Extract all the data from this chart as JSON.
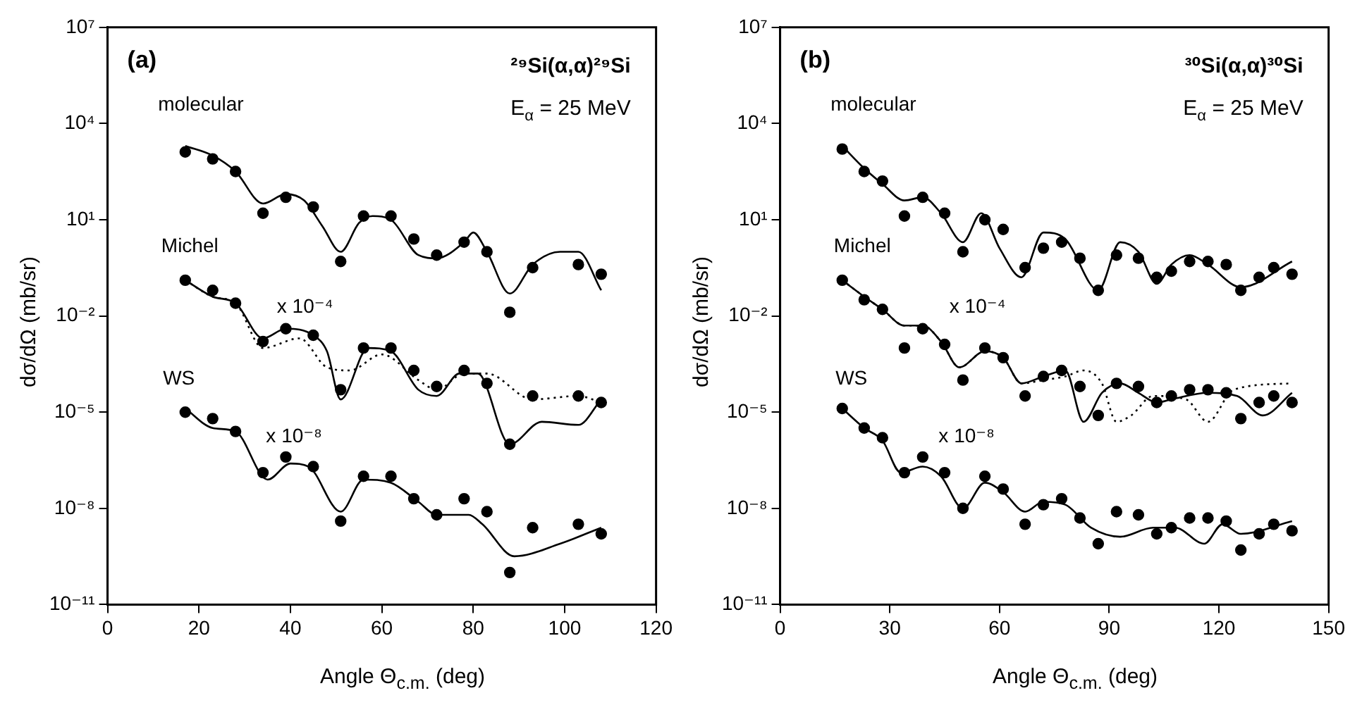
{
  "chart_data": [
    {
      "type": "scatter",
      "xlabel": "Angle Θ$_{c.m.}$ (deg)",
      "ylabel": "dσ/dΩ (mb/sr)",
      "log": "y",
      "marker": "circle",
      "xlim": [
        0,
        120
      ],
      "xticks": [
        0,
        20,
        40,
        60,
        80,
        100,
        120
      ],
      "ylim": [
        1e-11,
        10000000.0
      ],
      "yticks": [
        {
          "value": 10000000.0,
          "label": "10⁷"
        },
        {
          "value": 10000.0,
          "label": "10⁴"
        },
        {
          "value": 10,
          "label": "10¹"
        },
        {
          "value": 0.01,
          "label": "10⁻²"
        },
        {
          "value": 1e-05,
          "label": "10⁻⁵"
        },
        {
          "value": 1e-08,
          "label": "10⁻⁸"
        },
        {
          "value": 1e-11,
          "label": "10⁻¹¹"
        }
      ],
      "annotations": [
        "(a)",
        "²⁹Si(α,α)²⁹Si",
        "E$_{α}$ = 25 MeV",
        "molecular",
        "Michel",
        "x 10⁻⁴",
        "WS",
        "x 10⁻⁸"
      ],
      "series": [
        {
          "color": "#000000",
          "x": [
            17,
            23,
            28,
            34,
            39,
            45,
            51,
            56,
            62,
            67,
            72,
            78,
            83,
            88,
            93,
            103,
            108
          ],
          "values": [
            1300.0,
            790.0,
            320.0,
            16.0,
            50.0,
            25.0,
            0.5,
            13.0,
            13.0,
            2.5,
            0.79,
            2,
            1,
            0.013,
            0.32,
            0.4,
            0.2
          ]
        },
        {
          "type": "line",
          "marker": "none",
          "color": "#000000",
          "x": [
            17,
            23,
            28,
            34,
            39,
            43,
            47,
            51,
            55,
            58,
            62,
            68,
            72,
            78,
            80,
            83,
            88,
            93,
            99,
            103,
            108
          ],
          "values": [
            2000.0,
            1000.0,
            320.0,
            32.0,
            63.0,
            40.0,
            6.3,
            1,
            7.9,
            13.0,
            10.0,
            0.79,
            0.63,
            2,
            4,
            1,
            0.05,
            0.4,
            1,
            1,
            0.063
          ]
        },
        {
          "color": "#000000",
          "x": [
            17,
            23,
            28,
            34,
            39,
            45,
            51,
            56,
            62,
            67,
            72,
            78,
            83,
            88,
            93,
            103,
            108
          ],
          "values": [
            0.13,
            0.063,
            0.025,
            0.0016,
            0.004,
            0.0025,
            5e-05,
            0.001,
            0.001,
            0.0002,
            6.3e-05,
            0.0002,
            7.9e-05,
            1e-06,
            3.2e-05,
            3.2e-05,
            2e-05
          ]
        },
        {
          "type": "line",
          "marker": "none",
          "color": "#000000",
          "x": [
            17,
            23,
            28,
            34,
            39,
            45,
            48,
            51,
            57,
            62,
            68,
            72,
            77,
            81,
            88,
            95,
            103,
            108
          ],
          "values": [
            0.13,
            0.04,
            0.025,
            0.002,
            0.004,
            0.0025,
            0.00079,
            2.5e-05,
            0.001,
            0.00079,
            5e-05,
            3.2e-05,
            0.00016,
            0.00016,
            1e-06,
            5e-06,
            4e-06,
            2.5e-05
          ]
        },
        {
          "type": "line",
          "marker": "none",
          "color": "#000000",
          "line_style": "dotted",
          "x": [
            17,
            23,
            28,
            34,
            42,
            48,
            53,
            60,
            68,
            72,
            78,
            83,
            93,
            103,
            108
          ],
          "values": [
            0.13,
            0.04,
            0.025,
            0.001,
            0.002,
            0.00025,
            0.0002,
            0.00063,
            0.0001,
            5e-05,
            0.00016,
            0.00016,
            2.5e-05,
            3.2e-05,
            2e-05
          ]
        },
        {
          "color": "#000000",
          "x": [
            17,
            23,
            28,
            34,
            39,
            45,
            51,
            56,
            62,
            67,
            72,
            78,
            83,
            88,
            93,
            103,
            108
          ],
          "values": [
            1e-05,
            6.3e-06,
            2.5e-06,
            1.3e-07,
            4e-07,
            2e-07,
            4e-09,
            1e-07,
            1e-07,
            2e-08,
            6.3e-09,
            2e-08,
            7.9e-09,
            1e-10,
            2.5e-09,
            3.2e-09,
            1.6e-09
          ]
        },
        {
          "type": "line",
          "marker": "none",
          "color": "#000000",
          "x": [
            17,
            23,
            28,
            35,
            40,
            44,
            51,
            56,
            62,
            68,
            72,
            79,
            82,
            89,
            99,
            108
          ],
          "values": [
            1.3e-05,
            3.2e-06,
            2.5e-06,
            7.9e-08,
            2.5e-07,
            2e-07,
            7.9e-09,
            7.9e-08,
            6.3e-08,
            1.6e-08,
            6.3e-09,
            6.3e-09,
            3.2e-09,
            3.2e-10,
            7.9e-10,
            2.5e-09
          ]
        }
      ]
    },
    {
      "type": "scatter",
      "xlabel": "Angle Θ$_{c.m.}$ (deg)",
      "ylabel": "dσ/dΩ (mb/sr)",
      "log": "y",
      "marker": "circle",
      "xlim": [
        0,
        150
      ],
      "xticks": [
        0,
        30,
        60,
        90,
        120,
        150
      ],
      "ylim": [
        1e-11,
        10000000.0
      ],
      "yticks": [
        {
          "value": 10000000.0,
          "label": "10⁷"
        },
        {
          "value": 10000.0,
          "label": "10⁴"
        },
        {
          "value": 10,
          "label": "10¹"
        },
        {
          "value": 0.01,
          "label": "10⁻²"
        },
        {
          "value": 1e-05,
          "label": "10⁻⁵"
        },
        {
          "value": 1e-08,
          "label": "10⁻⁸"
        },
        {
          "value": 1e-11,
          "label": "10⁻¹¹"
        }
      ],
      "annotations": [
        "(b)",
        "³⁰Si(α,α)³⁰Si",
        "E$_{α}$ = 25 MeV",
        "molecular",
        "Michel",
        "x 10⁻⁴",
        "WS",
        "x 10⁻⁸"
      ],
      "series": [
        {
          "color": "#000000",
          "x": [
            17,
            23,
            28,
            34,
            39,
            45,
            50,
            56,
            61,
            67,
            72,
            77,
            82,
            87,
            92,
            98,
            103,
            107,
            112,
            117,
            122,
            126,
            131,
            135,
            140
          ],
          "values": [
            1600.0,
            320.0,
            160.0,
            13.0,
            50.0,
            16.0,
            1,
            10.0,
            5,
            0.32,
            1.3,
            2,
            0.63,
            0.063,
            0.79,
            0.63,
            0.16,
            0.25,
            0.5,
            0.5,
            0.4,
            0.063,
            0.16,
            0.32,
            0.2
          ]
        },
        {
          "type": "line",
          "marker": "none",
          "color": "#000000",
          "x": [
            17,
            23,
            28,
            34,
            39,
            44,
            50,
            55,
            60,
            66,
            72,
            78,
            87,
            93,
            98,
            103,
            107,
            112,
            117,
            126,
            140
          ],
          "values": [
            2000.0,
            400.0,
            130.0,
            40.0,
            50.0,
            16.0,
            2,
            16.0,
            1.3,
            0.16,
            4,
            2.5,
            0.063,
            2,
            1,
            0.1,
            0.4,
            0.79,
            0.4,
            0.079,
            0.5
          ]
        },
        {
          "color": "#000000",
          "x": [
            17,
            23,
            28,
            34,
            39,
            45,
            50,
            56,
            61,
            67,
            72,
            77,
            82,
            87,
            92,
            98,
            103,
            107,
            112,
            117,
            122,
            126,
            131,
            135,
            140
          ],
          "values": [
            0.13,
            0.032,
            0.016,
            0.001,
            0.004,
            0.0013,
            0.0001,
            0.001,
            0.0005,
            3.2e-05,
            0.00013,
            0.0002,
            6.3e-05,
            7.9e-06,
            7.9e-05,
            6.3e-05,
            2e-05,
            3.2e-05,
            5e-05,
            5e-05,
            4e-05,
            6.3e-06,
            2e-05,
            3.2e-05,
            2e-05
          ]
        },
        {
          "type": "line",
          "marker": "none",
          "color": "#000000",
          "x": [
            17,
            23,
            28,
            34,
            39,
            44,
            49,
            56,
            61,
            66,
            72,
            78,
            83,
            88,
            93,
            98,
            103,
            107,
            117,
            125,
            132,
            140
          ],
          "values": [
            0.13,
            0.04,
            0.016,
            0.005,
            0.005,
            0.0016,
            0.00025,
            0.00079,
            0.0005,
            7.9e-05,
            0.00013,
            0.0002,
            5e-06,
            4e-05,
            7.9e-05,
            4e-05,
            2e-05,
            2.5e-05,
            4e-05,
            3.2e-05,
            7.9e-06,
            4e-05
          ]
        },
        {
          "type": "line",
          "marker": "none",
          "color": "#000000",
          "line_style": "dotted",
          "x": [
            17,
            23,
            28,
            34,
            39,
            44,
            49,
            56,
            61,
            66,
            72,
            78,
            83,
            88,
            92,
            96,
            102,
            111,
            117,
            124,
            140
          ],
          "values": [
            0.13,
            0.04,
            0.016,
            0.005,
            0.005,
            0.0016,
            0.00025,
            0.00079,
            0.0005,
            7.9e-05,
            0.0001,
            0.00013,
            0.0002,
            7.9e-05,
            5e-06,
            7.9e-06,
            3.2e-05,
            2.5e-05,
            5e-06,
            5e-05,
            7.9e-05
          ]
        },
        {
          "color": "#000000",
          "x": [
            17,
            23,
            28,
            34,
            39,
            45,
            50,
            56,
            61,
            67,
            72,
            77,
            82,
            87,
            92,
            98,
            103,
            107,
            112,
            117,
            122,
            126,
            131,
            135,
            140
          ],
          "values": [
            1.3e-05,
            3.2e-06,
            1.6e-06,
            1.3e-07,
            4e-07,
            1.3e-07,
            1e-08,
            1e-07,
            4e-08,
            3.2e-09,
            1.3e-08,
            2e-08,
            5e-09,
            7.9e-10,
            7.9e-09,
            6.3e-09,
            1.6e-09,
            2.5e-09,
            5e-09,
            5e-09,
            4e-09,
            5e-10,
            1.6e-09,
            3.2e-09,
            2e-09
          ]
        },
        {
          "type": "line",
          "marker": "none",
          "color": "#000000",
          "x": [
            17,
            23,
            28,
            33,
            39,
            44,
            50,
            56,
            61,
            67,
            72,
            78,
            85,
            93,
            102,
            108,
            116,
            121,
            126,
            140
          ],
          "values": [
            1.3e-05,
            3.2e-06,
            1.3e-06,
            1.3e-07,
            2e-07,
            1e-07,
            1e-08,
            6.3e-08,
            3.2e-08,
            7.9e-09,
            1.6e-08,
            1.3e-08,
            2.5e-09,
            1.3e-09,
            2.5e-09,
            2.5e-09,
            7.9e-10,
            3.2e-09,
            1.6e-09,
            4e-09
          ]
        }
      ]
    }
  ]
}
